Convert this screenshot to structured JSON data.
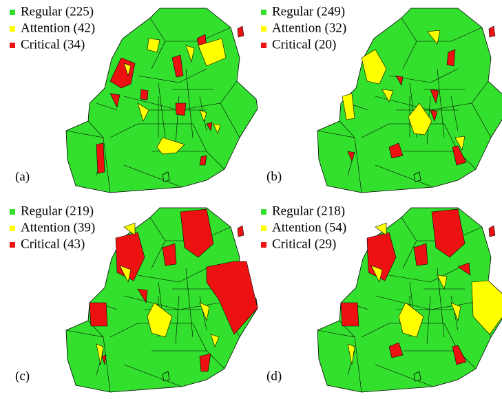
{
  "panels": [
    {
      "label": "(a)",
      "legend": [
        "Regular (225)",
        "Attention (42)",
        "Critical (34)"
      ]
    },
    {
      "label": "(b)",
      "legend": [
        "Regular (249)",
        "Attention (32)",
        "Critical (20)"
      ]
    },
    {
      "label": "(c)",
      "legend": [
        "Regular (219)",
        "Attention (39)",
        "Critical (43)"
      ]
    },
    {
      "label": "(d)",
      "legend": [
        "Regular (218)",
        "Attention (54)",
        "Critical (29)"
      ]
    }
  ]
}
